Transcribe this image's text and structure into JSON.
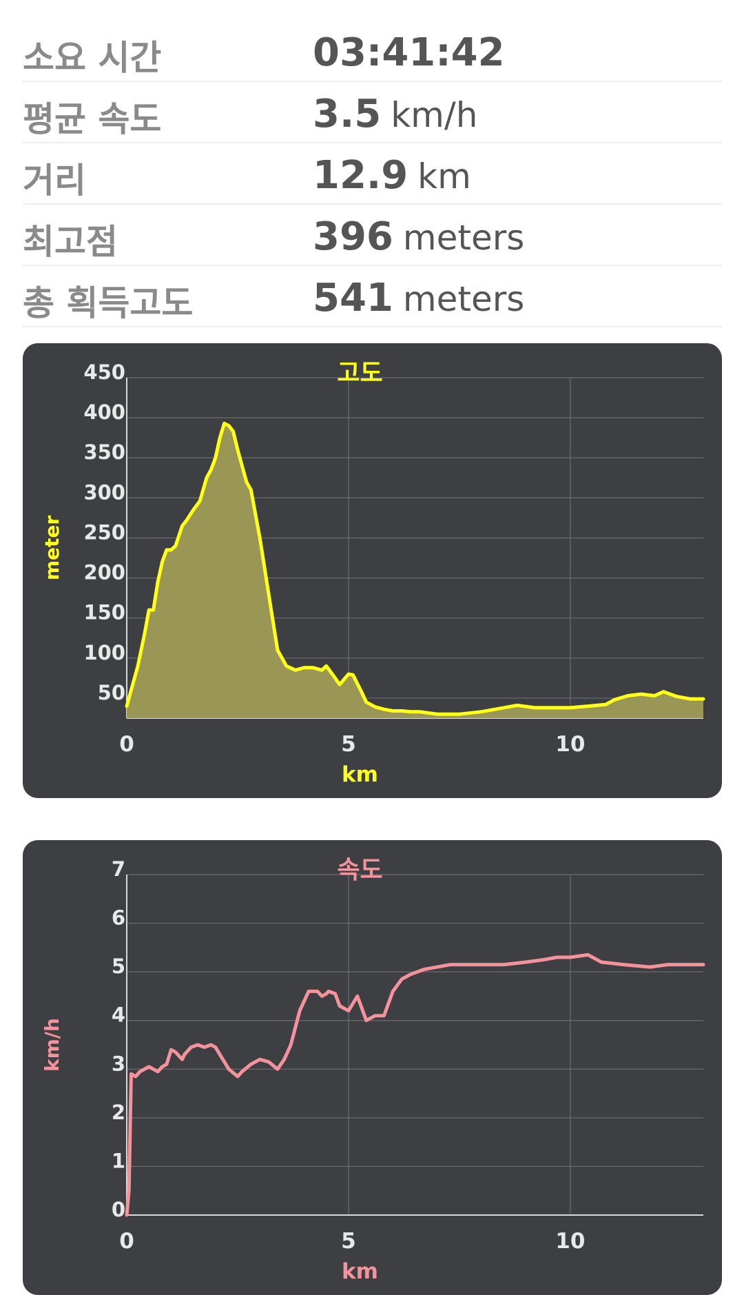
{
  "stats": [
    {
      "label": "소요 시간",
      "value": "03:41:42",
      "unit": ""
    },
    {
      "label": "평균 속도",
      "value": "3.5",
      "unit": "km/h"
    },
    {
      "label": "거리",
      "value": "12.9",
      "unit": "km"
    },
    {
      "label": "최고점",
      "value": "396",
      "unit": "meters"
    },
    {
      "label": "총 획득고도",
      "value": "541",
      "unit": "meters"
    }
  ],
  "colors": {
    "elevation": "#ffff1a",
    "elevation_fill": "#9a9655",
    "speed": "#f4939b",
    "card_bg": "#3d3f43",
    "grid": "#6a6d72",
    "tick_text": "#e8e8e8"
  },
  "chart_data": [
    {
      "type": "area",
      "title": "고도",
      "xlabel": "km",
      "ylabel": "meter",
      "xlim": [
        0,
        13
      ],
      "ylim": [
        25,
        450
      ],
      "x_ticks": [
        0,
        5,
        10
      ],
      "y_ticks": [
        50,
        100,
        150,
        200,
        250,
        300,
        350,
        400,
        450
      ],
      "grid": true,
      "x": [
        0,
        0.1,
        0.25,
        0.4,
        0.5,
        0.6,
        0.7,
        0.8,
        0.9,
        1.0,
        1.1,
        1.25,
        1.35,
        1.5,
        1.65,
        1.8,
        1.9,
        2.0,
        2.1,
        2.2,
        2.3,
        2.4,
        2.5,
        2.6,
        2.7,
        2.8,
        3.0,
        3.2,
        3.4,
        3.6,
        3.8,
        4.0,
        4.2,
        4.4,
        4.5,
        4.7,
        4.8,
        5.0,
        5.1,
        5.3,
        5.4,
        5.6,
        5.8,
        6.0,
        6.2,
        6.4,
        6.6,
        7.0,
        7.3,
        7.5,
        8.0,
        8.5,
        8.8,
        9.2,
        9.6,
        10.0,
        10.4,
        10.8,
        11.0,
        11.3,
        11.6,
        11.9,
        12.1,
        12.4,
        12.7,
        13.0
      ],
      "y": [
        40,
        60,
        90,
        130,
        160,
        160,
        195,
        220,
        235,
        235,
        240,
        265,
        272,
        285,
        296,
        325,
        335,
        350,
        375,
        393,
        390,
        383,
        360,
        340,
        320,
        310,
        250,
        180,
        110,
        90,
        85,
        88,
        88,
        85,
        90,
        75,
        67,
        80,
        79,
        57,
        45,
        39,
        36,
        34,
        34,
        33,
        33,
        30,
        30,
        30,
        33,
        38,
        41,
        38,
        38,
        38,
        40,
        42,
        48,
        53,
        55,
        53,
        58,
        52,
        49,
        49
      ]
    },
    {
      "type": "line",
      "title": "속도",
      "xlabel": "km",
      "ylabel": "km/h",
      "xlim": [
        0,
        13
      ],
      "ylim": [
        0,
        7
      ],
      "x_ticks": [
        0,
        5,
        10
      ],
      "y_ticks": [
        0,
        1,
        2,
        3,
        4,
        5,
        6,
        7
      ],
      "grid": true,
      "x": [
        0,
        0.05,
        0.1,
        0.2,
        0.3,
        0.5,
        0.6,
        0.7,
        0.8,
        0.9,
        1.0,
        1.1,
        1.25,
        1.3,
        1.45,
        1.6,
        1.75,
        1.9,
        2.0,
        2.1,
        2.3,
        2.5,
        2.6,
        2.8,
        3.0,
        3.2,
        3.4,
        3.55,
        3.7,
        3.9,
        4.1,
        4.3,
        4.4,
        4.5,
        4.55,
        4.7,
        4.8,
        5.0,
        5.2,
        5.4,
        5.6,
        5.8,
        6.0,
        6.2,
        6.4,
        6.7,
        7.0,
        7.3,
        7.5,
        8.0,
        8.5,
        9.0,
        9.4,
        9.7,
        10.0,
        10.4,
        10.7,
        11.2,
        11.8,
        12.2,
        12.6,
        13.0
      ],
      "y": [
        0,
        0.5,
        2.9,
        2.85,
        2.95,
        3.05,
        3.0,
        2.95,
        3.05,
        3.1,
        3.4,
        3.35,
        3.2,
        3.3,
        3.45,
        3.5,
        3.45,
        3.5,
        3.45,
        3.3,
        3.0,
        2.85,
        2.95,
        3.1,
        3.2,
        3.15,
        3.0,
        3.2,
        3.5,
        4.2,
        4.6,
        4.6,
        4.5,
        4.55,
        4.6,
        4.55,
        4.3,
        4.2,
        4.5,
        4.0,
        4.1,
        4.1,
        4.6,
        4.85,
        4.95,
        5.05,
        5.1,
        5.15,
        5.15,
        5.15,
        5.15,
        5.2,
        5.25,
        5.3,
        5.3,
        5.35,
        5.2,
        5.15,
        5.1,
        5.15,
        5.15,
        5.15
      ]
    }
  ]
}
